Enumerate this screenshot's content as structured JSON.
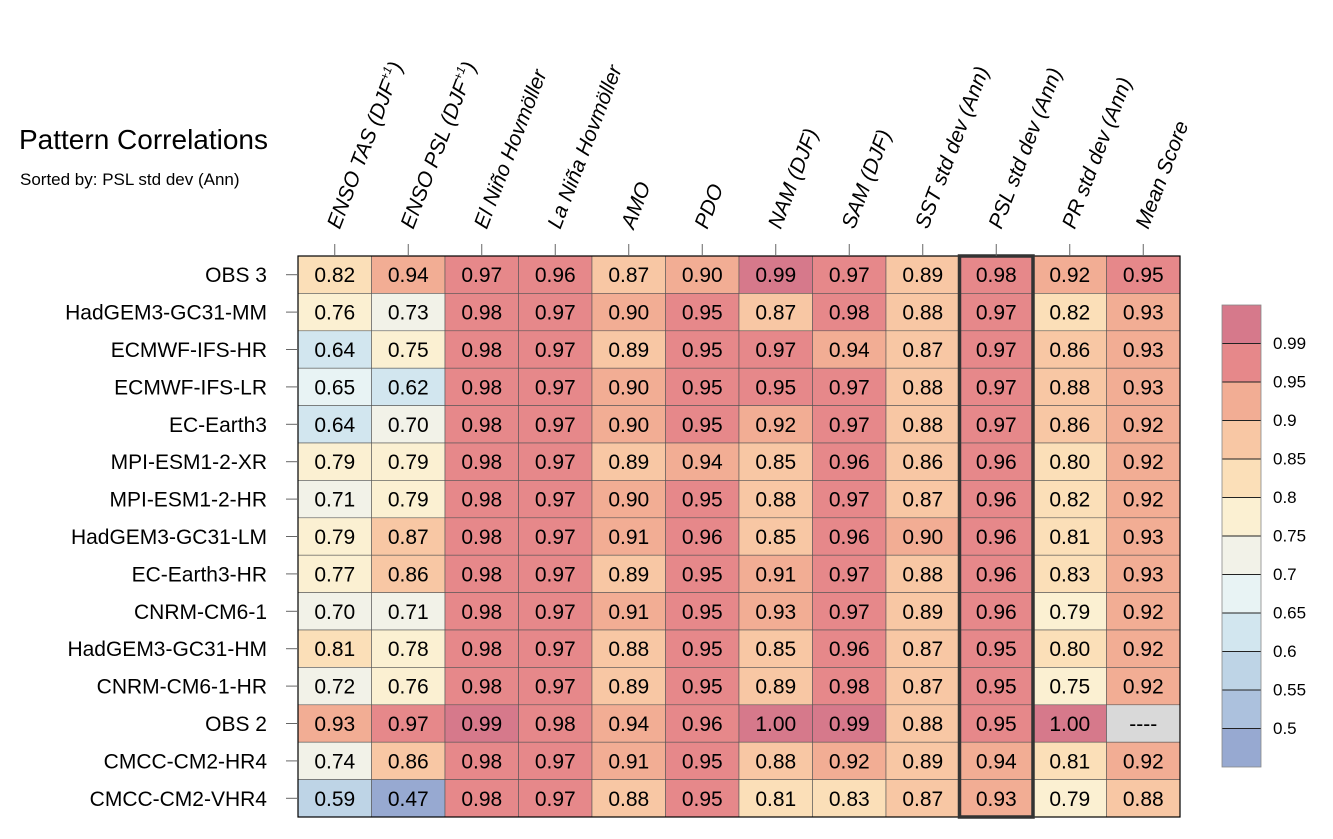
{
  "title": "Pattern Correlations",
  "subtitle": "Sorted by: PSL std dev (Ann)",
  "chart_data": {
    "type": "heatmap",
    "columns": [
      {
        "base": "ENSO TAS (DJF",
        "sup": "+1",
        "tail": ")"
      },
      {
        "base": "ENSO PSL (DJF",
        "sup": "+1",
        "tail": ")"
      },
      {
        "base": "El Niño Hovmöller",
        "sup": "",
        "tail": ""
      },
      {
        "base": "La Niña Hovmöller",
        "sup": "",
        "tail": ""
      },
      {
        "base": "AMO",
        "sup": "",
        "tail": ""
      },
      {
        "base": "PDO",
        "sup": "",
        "tail": ""
      },
      {
        "base": "NAM (DJF)",
        "sup": "",
        "tail": ""
      },
      {
        "base": "SAM (DJF)",
        "sup": "",
        "tail": ""
      },
      {
        "base": "SST std dev (Ann)",
        "sup": "",
        "tail": ""
      },
      {
        "base": "PSL std dev (Ann)",
        "sup": "",
        "tail": ""
      },
      {
        "base": "PR std dev (Ann)",
        "sup": "",
        "tail": ""
      },
      {
        "base": "Mean Score",
        "sup": "",
        "tail": ""
      }
    ],
    "sorted_column": "PSL std dev (Ann)",
    "rows": [
      {
        "label": "OBS 3",
        "values": [
          "0.82",
          "0.94",
          "0.97",
          "0.96",
          "0.87",
          "0.90",
          "0.99",
          "0.97",
          "0.89",
          "0.98",
          "0.92",
          "0.95"
        ]
      },
      {
        "label": "HadGEM3-GC31-MM",
        "values": [
          "0.76",
          "0.73",
          "0.98",
          "0.97",
          "0.90",
          "0.95",
          "0.87",
          "0.98",
          "0.88",
          "0.97",
          "0.82",
          "0.93"
        ]
      },
      {
        "label": "ECMWF-IFS-HR",
        "values": [
          "0.64",
          "0.75",
          "0.98",
          "0.97",
          "0.89",
          "0.95",
          "0.97",
          "0.94",
          "0.87",
          "0.97",
          "0.86",
          "0.93"
        ]
      },
      {
        "label": "ECMWF-IFS-LR",
        "values": [
          "0.65",
          "0.62",
          "0.98",
          "0.97",
          "0.90",
          "0.95",
          "0.95",
          "0.97",
          "0.88",
          "0.97",
          "0.88",
          "0.93"
        ]
      },
      {
        "label": "EC-Earth3",
        "values": [
          "0.64",
          "0.70",
          "0.98",
          "0.97",
          "0.90",
          "0.95",
          "0.92",
          "0.97",
          "0.88",
          "0.97",
          "0.86",
          "0.92"
        ]
      },
      {
        "label": "MPI-ESM1-2-XR",
        "values": [
          "0.79",
          "0.79",
          "0.98",
          "0.97",
          "0.89",
          "0.94",
          "0.85",
          "0.96",
          "0.86",
          "0.96",
          "0.80",
          "0.92"
        ]
      },
      {
        "label": "MPI-ESM1-2-HR",
        "values": [
          "0.71",
          "0.79",
          "0.98",
          "0.97",
          "0.90",
          "0.95",
          "0.88",
          "0.97",
          "0.87",
          "0.96",
          "0.82",
          "0.92"
        ]
      },
      {
        "label": "HadGEM3-GC31-LM",
        "values": [
          "0.79",
          "0.87",
          "0.98",
          "0.97",
          "0.91",
          "0.96",
          "0.85",
          "0.96",
          "0.90",
          "0.96",
          "0.81",
          "0.93"
        ]
      },
      {
        "label": "EC-Earth3-HR",
        "values": [
          "0.77",
          "0.86",
          "0.98",
          "0.97",
          "0.89",
          "0.95",
          "0.91",
          "0.97",
          "0.88",
          "0.96",
          "0.83",
          "0.93"
        ]
      },
      {
        "label": "CNRM-CM6-1",
        "values": [
          "0.70",
          "0.71",
          "0.98",
          "0.97",
          "0.91",
          "0.95",
          "0.93",
          "0.97",
          "0.89",
          "0.96",
          "0.79",
          "0.92"
        ]
      },
      {
        "label": "HadGEM3-GC31-HM",
        "values": [
          "0.81",
          "0.78",
          "0.98",
          "0.97",
          "0.88",
          "0.95",
          "0.85",
          "0.96",
          "0.87",
          "0.95",
          "0.80",
          "0.92"
        ]
      },
      {
        "label": "CNRM-CM6-1-HR",
        "values": [
          "0.72",
          "0.76",
          "0.98",
          "0.97",
          "0.89",
          "0.95",
          "0.89",
          "0.98",
          "0.87",
          "0.95",
          "0.75",
          "0.92"
        ]
      },
      {
        "label": "OBS 2",
        "values": [
          "0.93",
          "0.97",
          "0.99",
          "0.98",
          "0.94",
          "0.96",
          "1.00",
          "0.99",
          "0.88",
          "0.95",
          "1.00",
          "----"
        ]
      },
      {
        "label": "CMCC-CM2-HR4",
        "values": [
          "0.74",
          "0.86",
          "0.98",
          "0.97",
          "0.91",
          "0.95",
          "0.88",
          "0.92",
          "0.89",
          "0.94",
          "0.81",
          "0.92"
        ]
      },
      {
        "label": "CMCC-CM2-VHR4",
        "values": [
          "0.59",
          "0.47",
          "0.98",
          "0.97",
          "0.88",
          "0.95",
          "0.81",
          "0.83",
          "0.87",
          "0.93",
          "0.79",
          "0.88"
        ]
      }
    ],
    "colorbar": {
      "labels": [
        "0.99",
        "0.95",
        "0.9",
        "0.85",
        "0.8",
        "0.75",
        "0.7",
        "0.65",
        "0.6",
        "0.55",
        "0.5"
      ],
      "levels": [
        0.5,
        0.55,
        0.6,
        0.65,
        0.7,
        0.75,
        0.8,
        0.85,
        0.9,
        0.95,
        0.99
      ],
      "colors": [
        "#97a9d1",
        "#acc1dd",
        "#bed4e6",
        "#d2e6ef",
        "#e8f3f4",
        "#f2f2e8",
        "#fbf0d2",
        "#fbdfb8",
        "#f8c7a4",
        "#f2ad94",
        "#e6888a",
        "#d6798b"
      ],
      "missing_color": "#d9d9d9"
    }
  }
}
